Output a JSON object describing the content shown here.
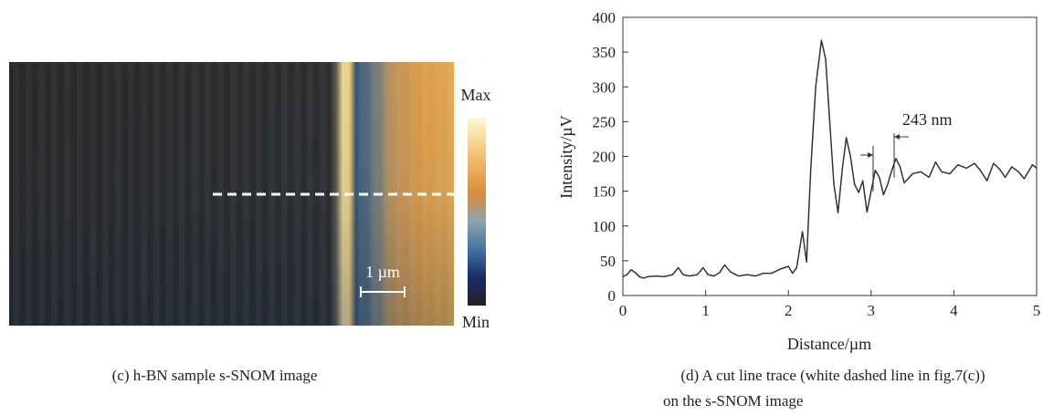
{
  "image_panel": {
    "caption": "(c) h-BN sample s-SNOM image",
    "colorbar_max": "Max",
    "colorbar_min": "Min",
    "scale_bar": "1 µm"
  },
  "chart_data": {
    "type": "line",
    "caption_lines": [
      "(d) A cut line trace (white dashed line in fig.7(c))",
      "on the s-SNOM image"
    ],
    "xlabel": "Distance/µm",
    "ylabel": "Intensity/µV",
    "annotation": "243 nm",
    "xlim": [
      0,
      5
    ],
    "ylim": [
      0,
      400
    ],
    "xticks": [
      0,
      1,
      2,
      3,
      4,
      5
    ],
    "yticks": [
      0,
      50,
      100,
      150,
      200,
      250,
      300,
      350,
      400
    ],
    "x": [
      0,
      0.05,
      0.1,
      0.15,
      0.2,
      0.25,
      0.3,
      0.4,
      0.5,
      0.6,
      0.67,
      0.73,
      0.8,
      0.9,
      0.97,
      1.03,
      1.1,
      1.17,
      1.23,
      1.3,
      1.4,
      1.5,
      1.6,
      1.7,
      1.8,
      1.9,
      2.0,
      2.05,
      2.1,
      2.17,
      2.22,
      2.27,
      2.33,
      2.4,
      2.45,
      2.5,
      2.55,
      2.6,
      2.65,
      2.7,
      2.75,
      2.8,
      2.85,
      2.9,
      2.95,
      3.0,
      3.05,
      3.1,
      3.15,
      3.2,
      3.25,
      3.3,
      3.35,
      3.4,
      3.5,
      3.6,
      3.7,
      3.78,
      3.85,
      3.95,
      4.05,
      4.15,
      4.25,
      4.32,
      4.4,
      4.48,
      4.55,
      4.62,
      4.7,
      4.78,
      4.85,
      4.95,
      5.0
    ],
    "series": [
      {
        "color": "#333333",
        "values": [
          27,
          30,
          37,
          33,
          27,
          25,
          27,
          28,
          27,
          30,
          40,
          30,
          28,
          30,
          40,
          30,
          28,
          33,
          44,
          34,
          28,
          30,
          28,
          32,
          32,
          38,
          42,
          32,
          40,
          92,
          48,
          180,
          300,
          367,
          340,
          250,
          160,
          119,
          180,
          227,
          200,
          160,
          148,
          165,
          120,
          150,
          180,
          170,
          145,
          160,
          180,
          197,
          185,
          162,
          175,
          178,
          170,
          192,
          178,
          175,
          188,
          183,
          190,
          180,
          165,
          190,
          182,
          170,
          185,
          178,
          168,
          188,
          183
        ]
      }
    ]
  }
}
